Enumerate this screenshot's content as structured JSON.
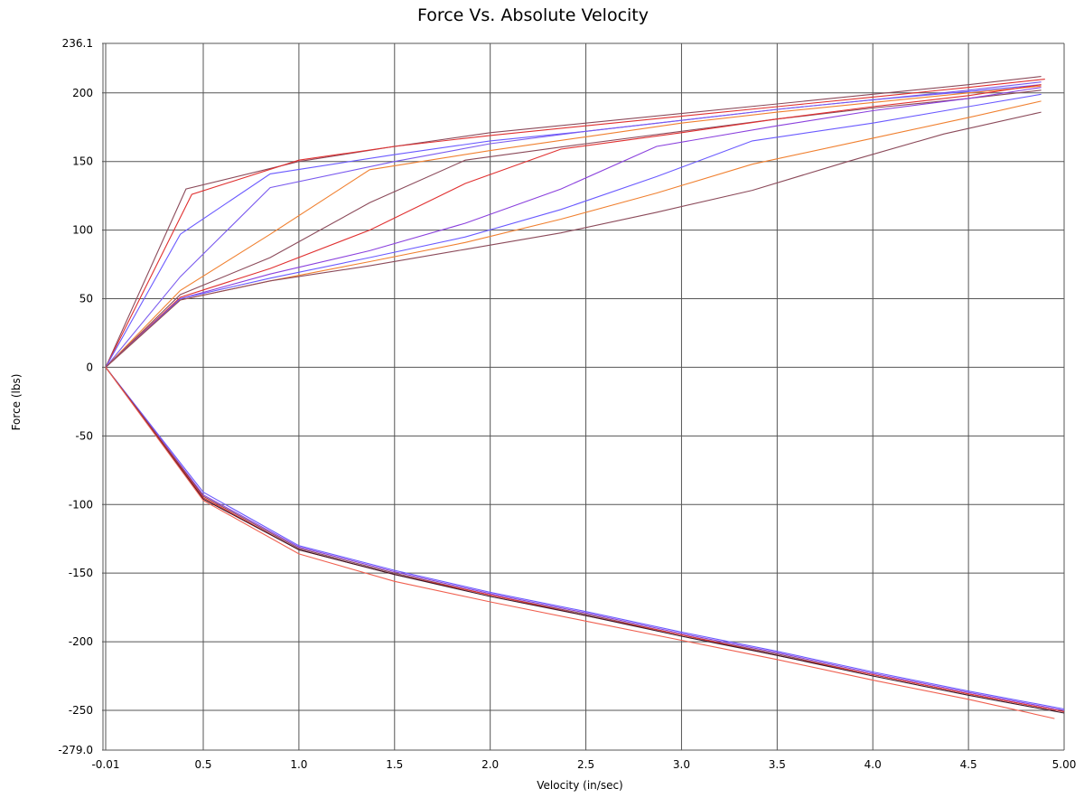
{
  "chart_data": {
    "type": "line",
    "title": "Force Vs. Absolute Velocity",
    "xlabel": "Velocity (in/sec)",
    "ylabel": "Force (lbs)",
    "xlim": [
      -0.01,
      5.0
    ],
    "ylim": [
      -279.0,
      236.1
    ],
    "grid": true,
    "x_ticks": [
      {
        "value": -0.01,
        "label": "-0.01"
      },
      {
        "value": 0.5,
        "label": "0.5"
      },
      {
        "value": 1.0,
        "label": "1.0"
      },
      {
        "value": 1.5,
        "label": "1.5"
      },
      {
        "value": 2.0,
        "label": "2.0"
      },
      {
        "value": 2.5,
        "label": "2.5"
      },
      {
        "value": 3.0,
        "label": "3.0"
      },
      {
        "value": 3.5,
        "label": "3.5"
      },
      {
        "value": 4.0,
        "label": "4.0"
      },
      {
        "value": 4.5,
        "label": "4.5"
      },
      {
        "value": 5.0,
        "label": "5.00"
      }
    ],
    "y_ticks": [
      {
        "value": 236.1,
        "label": "236.1"
      },
      {
        "value": 200,
        "label": "200"
      },
      {
        "value": 150,
        "label": "150"
      },
      {
        "value": 100,
        "label": "100"
      },
      {
        "value": 50,
        "label": "50"
      },
      {
        "value": 0,
        "label": "0"
      },
      {
        "value": -50,
        "label": "-50"
      },
      {
        "value": -100,
        "label": "-100"
      },
      {
        "value": -150,
        "label": "-150"
      },
      {
        "value": -200,
        "label": "-200"
      },
      {
        "value": -250,
        "label": "-250"
      },
      {
        "value": -279.0,
        "label": "-279.0"
      }
    ],
    "series": [
      {
        "color": "#8b4a5a",
        "x": [
          -0.01,
          0.41,
          1.0,
          1.5,
          2.0,
          2.5,
          3.0,
          3.5,
          4.0,
          4.5,
          4.88
        ],
        "y": [
          0,
          130,
          150,
          161,
          171,
          178,
          185,
          192,
          199,
          206,
          212
        ]
      },
      {
        "color": "#e03030",
        "x": [
          -0.01,
          0.44,
          1.0,
          1.5,
          2.0,
          2.5,
          3.0,
          3.5,
          4.0,
          4.5,
          4.9
        ],
        "y": [
          0,
          126,
          151,
          161,
          169,
          176,
          183,
          190,
          197,
          204,
          210
        ]
      },
      {
        "color": "#6a5aff",
        "x": [
          -0.01,
          0.38,
          0.85,
          1.5,
          2.0,
          2.5,
          3.0,
          3.5,
          4.0,
          4.5,
          4.88
        ],
        "y": [
          0,
          97,
          141,
          155,
          165,
          172,
          180,
          188,
          195,
          201,
          206
        ]
      },
      {
        "color": "#7a5aee",
        "x": [
          -0.01,
          0.38,
          0.85,
          1.5,
          2.0,
          2.5,
          3.0,
          3.5,
          4.0,
          4.5,
          4.88
        ],
        "y": [
          0,
          66,
          131,
          150,
          163,
          172,
          180,
          188,
          195,
          202,
          208
        ]
      },
      {
        "color": "#f08030",
        "x": [
          -0.01,
          0.38,
          0.85,
          1.37,
          2.0,
          2.5,
          3.0,
          3.5,
          4.0,
          4.5,
          4.88
        ],
        "y": [
          0,
          56,
          97,
          144,
          158,
          168,
          178,
          186,
          193,
          200,
          205
        ]
      },
      {
        "color": "#8b4a5a",
        "x": [
          -0.01,
          0.38,
          0.85,
          1.37,
          1.87,
          2.5,
          3.0,
          3.5,
          4.0,
          4.5,
          4.88
        ],
        "y": [
          0,
          53,
          80,
          120,
          151,
          163,
          172,
          181,
          189,
          196,
          202
        ]
      },
      {
        "color": "#e03030",
        "x": [
          -0.01,
          0.38,
          0.85,
          1.37,
          1.87,
          2.37,
          3.0,
          3.5,
          4.0,
          4.5,
          4.88
        ],
        "y": [
          0,
          51,
          72,
          100,
          134,
          159,
          171,
          181,
          190,
          198,
          206
        ]
      },
      {
        "color": "#8a40dd",
        "x": [
          -0.01,
          0.38,
          0.85,
          1.37,
          1.87,
          2.37,
          2.87,
          3.5,
          4.0,
          4.5,
          4.88
        ],
        "y": [
          0,
          50,
          68,
          85,
          105,
          130,
          161,
          176,
          187,
          196,
          204
        ]
      },
      {
        "color": "#6a5aff",
        "x": [
          -0.01,
          0.38,
          0.85,
          1.37,
          1.87,
          2.37,
          2.87,
          3.37,
          4.0,
          4.5,
          4.88
        ],
        "y": [
          0,
          50,
          65,
          80,
          95,
          115,
          139,
          165,
          178,
          190,
          199
        ]
      },
      {
        "color": "#f08030",
        "x": [
          -0.01,
          0.38,
          0.85,
          1.37,
          1.87,
          2.37,
          2.87,
          3.37,
          4.0,
          4.5,
          4.88
        ],
        "y": [
          0,
          49,
          63,
          77,
          91,
          108,
          127,
          148,
          167,
          182,
          194
        ]
      },
      {
        "color": "#8b4a5a",
        "x": [
          -0.01,
          0.38,
          0.85,
          1.37,
          1.87,
          2.37,
          2.87,
          3.37,
          3.87,
          4.37,
          4.88
        ],
        "y": [
          0,
          49,
          63,
          74,
          86,
          98,
          113,
          129,
          150,
          170,
          186
        ]
      },
      {
        "color": "#6a5aff",
        "x": [
          -0.01,
          0.5,
          1.0,
          1.5,
          2.0,
          2.5,
          3.0,
          3.5,
          4.0,
          4.5,
          5.0
        ],
        "y": [
          0,
          -91,
          -130,
          -148,
          -164,
          -178,
          -193,
          -207,
          -222,
          -236,
          -249
        ]
      },
      {
        "color": "#8a40dd",
        "x": [
          -0.01,
          0.5,
          1.0,
          1.5,
          2.0,
          2.5,
          3.0,
          3.5,
          4.0,
          4.5,
          5.0
        ],
        "y": [
          0,
          -93,
          -131,
          -149,
          -165,
          -179,
          -194,
          -208,
          -223,
          -237,
          -250
        ]
      },
      {
        "color": "#8b4a5a",
        "x": [
          -0.01,
          0.5,
          1.0,
          1.5,
          2.0,
          2.5,
          3.0,
          3.5,
          4.0,
          4.5,
          5.0
        ],
        "y": [
          0,
          -94,
          -132,
          -150,
          -166,
          -180,
          -195,
          -209,
          -224,
          -238,
          -251
        ]
      },
      {
        "color": "#e03030",
        "x": [
          -0.01,
          0.5,
          1.0,
          1.5,
          2.0,
          2.5,
          3.0,
          3.5,
          4.0,
          4.5,
          5.0
        ],
        "y": [
          0,
          -95,
          -133,
          -151,
          -166,
          -181,
          -195,
          -210,
          -224,
          -238,
          -251
        ]
      },
      {
        "color": "#3a1a2a",
        "x": [
          -0.01,
          0.5,
          1.0,
          1.5,
          2.0,
          2.5,
          3.0,
          3.5,
          4.0,
          4.5,
          5.0
        ],
        "y": [
          0,
          -96,
          -133,
          -151,
          -167,
          -181,
          -196,
          -210,
          -225,
          -239,
          -252
        ]
      },
      {
        "color": "#f06050",
        "x": [
          -0.01,
          0.5,
          1.0,
          1.5,
          2.0,
          2.5,
          3.0,
          3.5,
          4.0,
          4.5,
          4.95
        ],
        "y": [
          0,
          -97,
          -136,
          -156,
          -171,
          -185,
          -199,
          -213,
          -228,
          -242,
          -256
        ]
      }
    ]
  }
}
